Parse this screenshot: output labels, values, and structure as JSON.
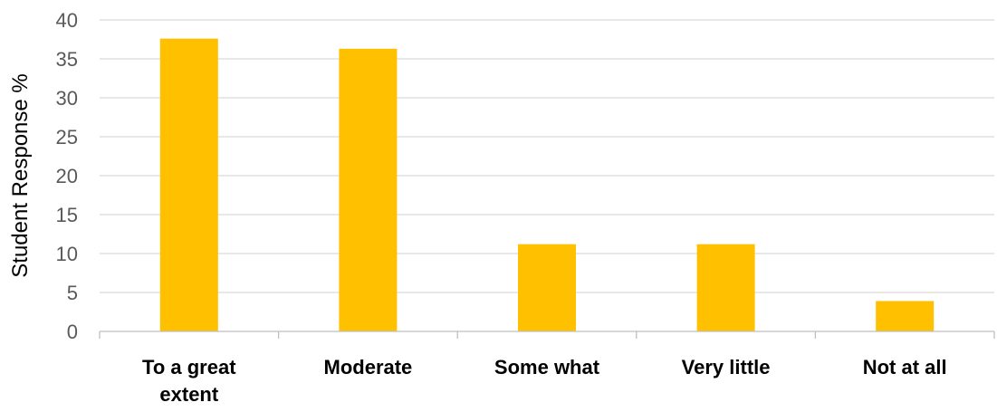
{
  "chart_data": {
    "type": "bar",
    "categories": [
      [
        "To a great",
        "extent"
      ],
      [
        "Moderate"
      ],
      [
        "Some what"
      ],
      [
        "Very little"
      ],
      [
        "Not at all"
      ]
    ],
    "values": [
      37.6,
      36.3,
      11.2,
      11.2,
      3.9
    ],
    "xlabel": "",
    "ylabel": "Student Response %",
    "ylim": [
      0,
      40
    ],
    "yticks": [
      0,
      5,
      10,
      15,
      20,
      25,
      30,
      35,
      40
    ],
    "grid": true,
    "bar_color": "#FFC000"
  }
}
